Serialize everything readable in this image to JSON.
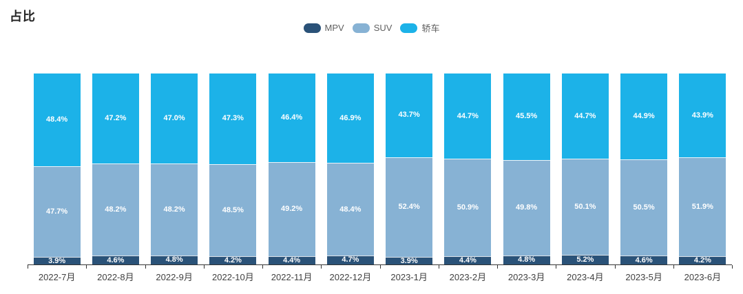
{
  "title": "占比",
  "colors": {
    "mpv": "#2A5278",
    "suv": "#87B2D4",
    "sedan": "#1CB2E8",
    "axis": "#333333",
    "label_text": "#ffffff"
  },
  "legend": [
    {
      "label": "MPV",
      "color": "#2A5278"
    },
    {
      "label": "SUV",
      "color": "#87B2D4"
    },
    {
      "label": "轿车",
      "color": "#1CB2E8"
    }
  ],
  "chart_data": {
    "type": "bar",
    "stacked": true,
    "percent_stacked": true,
    "title": "占比",
    "legend_position": "top-center",
    "grid": false,
    "y_axis_visible": false,
    "ylim": [
      0,
      100
    ],
    "value_suffix": "%",
    "categories": [
      "2022-7月",
      "2022-8月",
      "2022-9月",
      "2022-10月",
      "2022-11月",
      "2022-12月",
      "2023-1月",
      "2023-2月",
      "2023-3月",
      "2023-4月",
      "2023-5月",
      "2023-6月"
    ],
    "series": [
      {
        "name": "MPV",
        "color": "#2A5278",
        "values": [
          3.9,
          4.6,
          4.8,
          4.2,
          4.4,
          4.7,
          3.9,
          4.4,
          4.8,
          5.2,
          4.6,
          4.2
        ]
      },
      {
        "name": "SUV",
        "color": "#87B2D4",
        "values": [
          47.7,
          48.2,
          48.2,
          48.5,
          49.2,
          48.4,
          52.4,
          50.9,
          49.8,
          50.1,
          50.5,
          51.9
        ]
      },
      {
        "name": "轿车",
        "color": "#1CB2E8",
        "values": [
          48.4,
          47.2,
          47.0,
          47.3,
          46.4,
          46.9,
          43.7,
          44.7,
          45.5,
          44.7,
          44.9,
          43.9
        ]
      }
    ]
  }
}
